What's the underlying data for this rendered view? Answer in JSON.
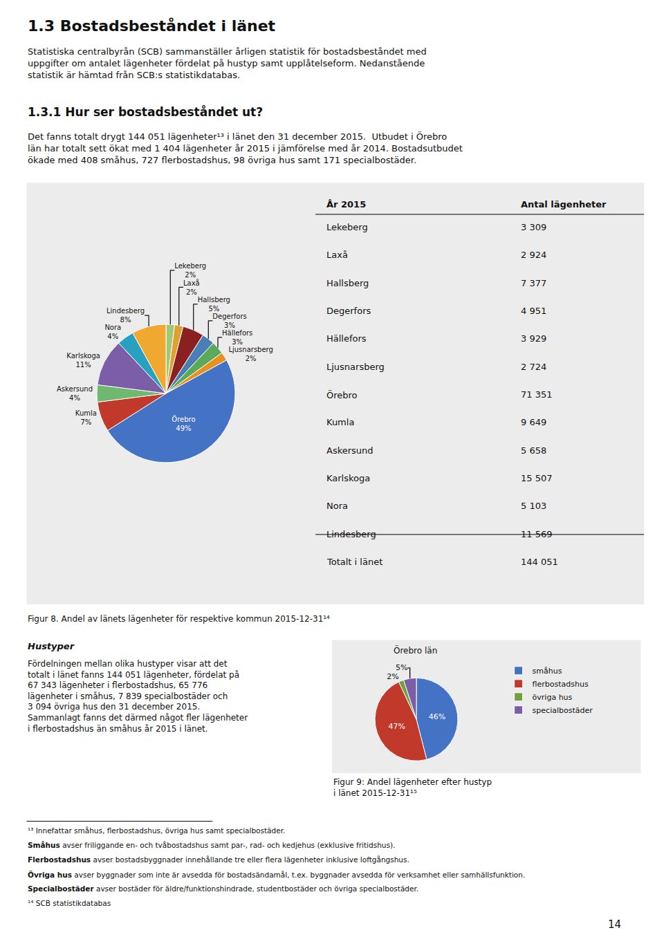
{
  "title": "1.3 Bostadsbeståndet i länet",
  "intro": "Statistiska centralbyrån (SCB) sammanställer årligen statistik för bostadsbeståndet med\nuppgifter om antalet lägenheter fördelat på hustyp samt upplåtelseform. Nedanstående\nstatistik är hämtad från SCB:s statistikdatabas.",
  "subtitle": "1.3.1 Hur ser bostadsbeståndet ut?",
  "body": "Det fanns totalt drygt 144 051 lägenheter¹³ i länet den 31 december 2015.  Utbudet i Örebro\nlän har totalt sett ökat med 1 404 lägenheter år 2015 i jämförelse med år 2014. Bostadsutbudet\nökade med 408 småhus, 727 flerbostadshus, 98 övriga hus samt 171 specialbostäder.",
  "sidebar": {
    "title": "Hustyper",
    "text": "Fördelningen mellan olika hustyper visar att det\ntotalt i länet fanns 144 051 lägenheter, fördelat på\n67 343 lägenheter i flerbostadshus, 65 776\nlägenheter i småhus, 7 839 specialbostäder och\n3 094 övriga hus den 31 december 2015.\nSammanlagt fanns det därmed något fler lägenheter\ni flerbostadshus än småhus år 2015 i länet."
  },
  "footnotes": [
    "¹³ Innefattar småhus, flerbostadshus, övriga hus samt specialbostäder.",
    [
      "Småhus",
      " avser friliggande en- och tvåbostadshus samt par-, rad- och kedjehus (exklusive fritidshus)."
    ],
    [
      "Flerbostadshus",
      " avser bostadsbyggnader innehållande tre eller flera lägenheter inklusive loftgångshus."
    ],
    [
      "Övriga hus",
      " avser byggnader som inte är avsedda för bostadsändamål, t.ex. byggnader avsedda för verksamhet eller samhällsfunktion."
    ],
    [
      "Specialbostäder",
      " avser bostäder för äldre/funktionshindrade, studentbostäder och övriga specialbostäder."
    ],
    "¹⁴ SCB statistikdatabas"
  ],
  "page_number": "14",
  "chart_data": [
    {
      "type": "pie",
      "caption": "Figur 8. Andel av länets lägenheter för respektive kommun 2015-12-31¹⁴",
      "categories": [
        "Lekeberg",
        "Laxå",
        "Hallsberg",
        "Degerfors",
        "Hällefors",
        "Ljusnarsberg",
        "Örebro",
        "Kumla",
        "Askersund",
        "Karlskoga",
        "Nora",
        "Lindesberg"
      ],
      "values": [
        2,
        2,
        5,
        3,
        3,
        2,
        49,
        7,
        4,
        11,
        4,
        8
      ],
      "value_labels": [
        "2%",
        "2%",
        "5%",
        "3%",
        "3%",
        "2%",
        "49%",
        "7%",
        "4%",
        "11%",
        "4%",
        "8%"
      ],
      "colors": [
        "#a0c878",
        "#e0a030",
        "#8b2020",
        "#4a7fb5",
        "#5aaa5a",
        "#e89020",
        "#4472c4",
        "#c0392b",
        "#70b870",
        "#7b5ea7",
        "#28a0c0",
        "#f0a830"
      ],
      "data_labels": true
    },
    {
      "type": "table",
      "columns": [
        "År 2015",
        "Antal lägenheter"
      ],
      "rows": [
        [
          "Lekeberg",
          "3 309"
        ],
        [
          "Laxå",
          "2 924"
        ],
        [
          "Hallsberg",
          "7 377"
        ],
        [
          "Degerfors",
          "4 951"
        ],
        [
          "Hällefors",
          "3 929"
        ],
        [
          "Ljusnarsberg",
          "2 724"
        ],
        [
          "Örebro",
          "71 351"
        ],
        [
          "Kumla",
          "9 649"
        ],
        [
          "Askersund",
          "5 658"
        ],
        [
          "Karlskoga",
          "15 507"
        ],
        [
          "Nora",
          "5 103"
        ],
        [
          "Lindesberg",
          "11 569"
        ],
        [
          "Totalt i länet",
          "144 051"
        ]
      ]
    },
    {
      "type": "pie",
      "title": "Örebro län",
      "caption": "Figur 9: Andel lägenheter efter hustyp\ni länet 2015-12-31¹⁵",
      "categories": [
        "småhus",
        "flerbostadshus",
        "övriga hus",
        "specialbostäder"
      ],
      "values": [
        46,
        47,
        2,
        5
      ],
      "value_labels": [
        "46%",
        "47%",
        "2%",
        "5%"
      ],
      "colors": [
        "#4472c4",
        "#c0392b",
        "#70a040",
        "#7b5ea7"
      ],
      "data_labels": true,
      "legend": "right"
    }
  ]
}
